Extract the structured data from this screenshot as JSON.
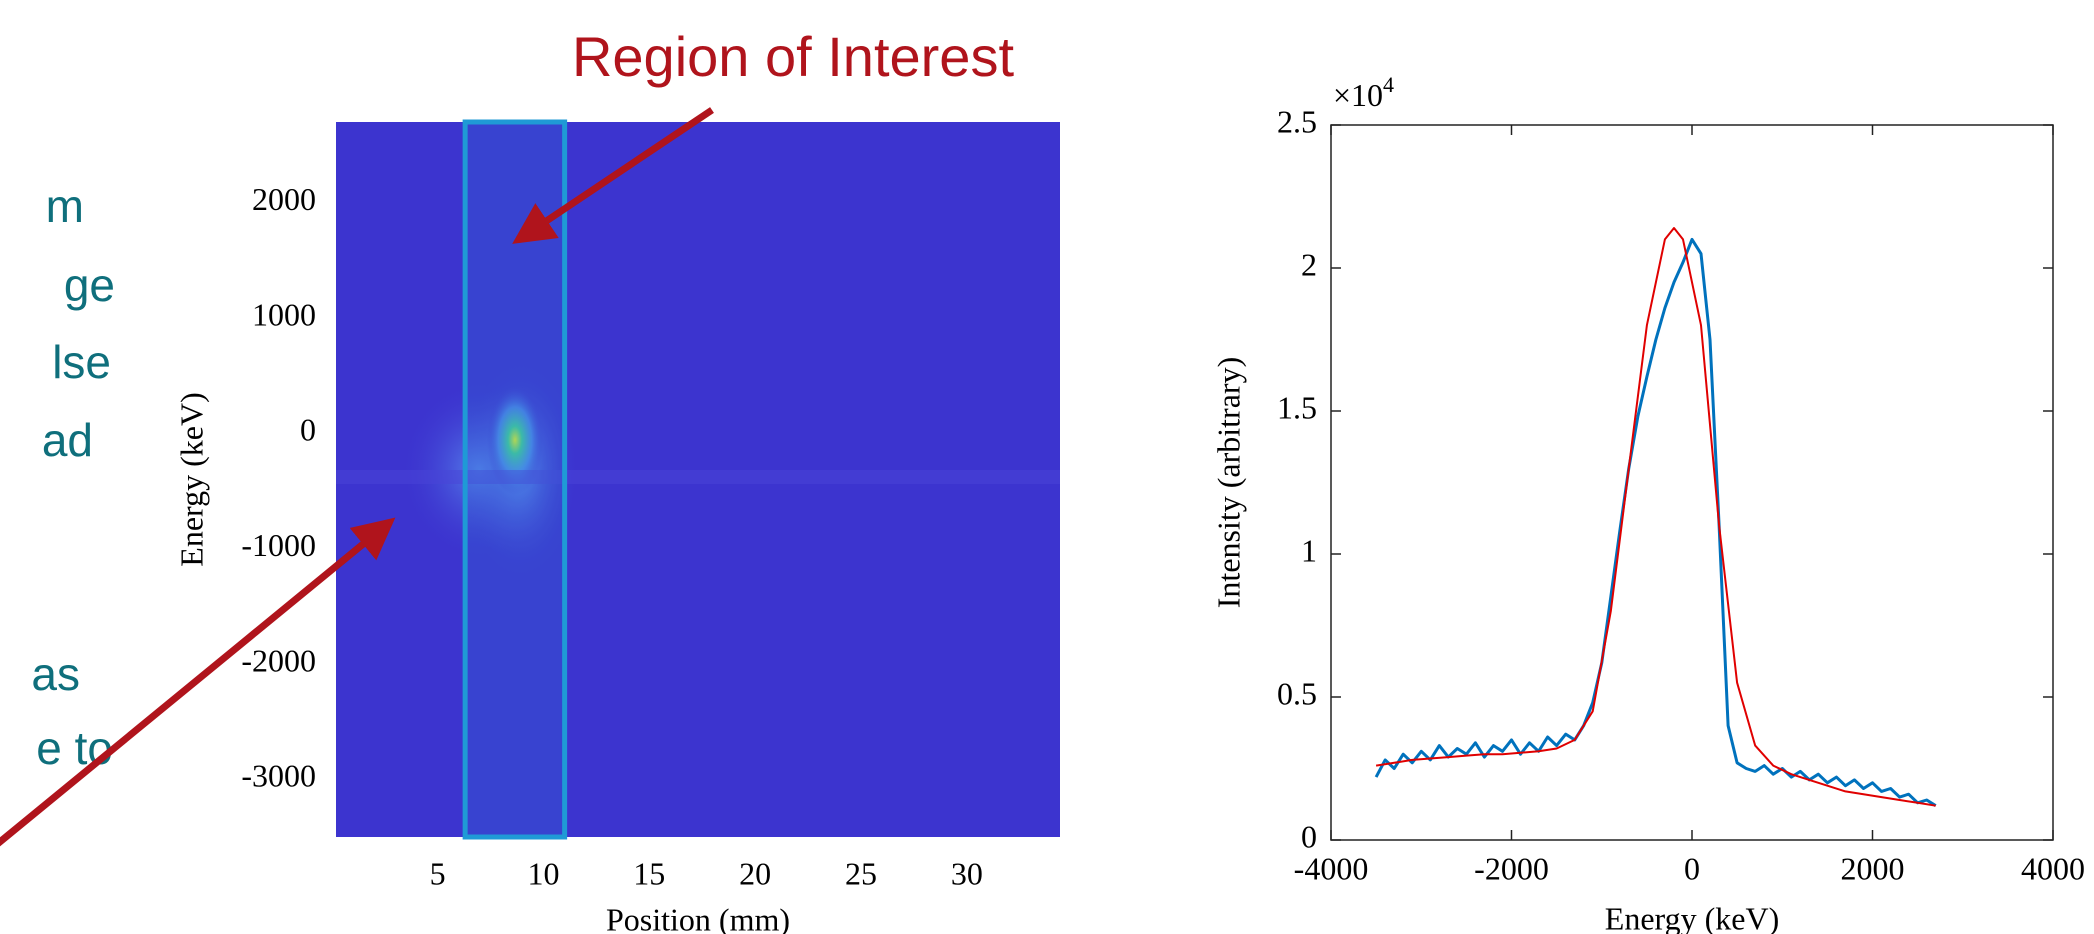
{
  "slide_text": {
    "fragments": [
      "m",
      "ge",
      "lse",
      "ad",
      "as",
      "e to"
    ]
  },
  "chart_data": [
    {
      "type": "heatmap",
      "annotation": "Region of Interest",
      "xlabel": "Position (mm)",
      "ylabel": "Energy (keV)",
      "xlim": [
        0.2,
        34.4
      ],
      "xticks": [
        5,
        10,
        15,
        20,
        25,
        30
      ],
      "ylim": [
        -3500,
        2700
      ],
      "yticks": [
        2000,
        1000,
        0,
        -1000,
        -2000,
        -3000
      ],
      "region": [
        6.3,
        11.0
      ],
      "color": "#3c34cf",
      "region_color": "#1f9ad6"
    },
    {
      "type": "line",
      "xlabel": "Energy (keV)",
      "ylabel": "Intensity  (arbitrary)",
      "multiplier": "×10",
      "multiplier_exp": "4",
      "xlim": [
        -4000,
        4000
      ],
      "xticks": [
        -4000,
        -2000,
        0,
        2000,
        4000
      ],
      "ylim": [
        0,
        2.5
      ],
      "yticks": [
        0,
        0.5,
        1,
        1.5,
        2,
        2.5
      ],
      "grid": false,
      "series": [
        {
          "color": "#0072bd",
          "x": [
            -3500,
            -3400,
            -3300,
            -3200,
            -3100,
            -3000,
            -2900,
            -2800,
            -2700,
            -2600,
            -2500,
            -2400,
            -2300,
            -2200,
            -2100,
            -2000,
            -1900,
            -1800,
            -1700,
            -1600,
            -1500,
            -1400,
            -1300,
            -1200,
            -1100,
            -1000,
            -900,
            -800,
            -700,
            -600,
            -500,
            -400,
            -300,
            -200,
            -100,
            0,
            100,
            200,
            300,
            400,
            500,
            600,
            700,
            800,
            900,
            1000,
            1100,
            1200,
            1300,
            1400,
            1500,
            1600,
            1700,
            1800,
            1900,
            2000,
            2100,
            2200,
            2300,
            2400,
            2500,
            2600,
            2700
          ],
          "values": [
            0.22,
            0.28,
            0.25,
            0.3,
            0.27,
            0.31,
            0.28,
            0.33,
            0.29,
            0.32,
            0.3,
            0.34,
            0.29,
            0.33,
            0.31,
            0.35,
            0.3,
            0.34,
            0.31,
            0.36,
            0.33,
            0.37,
            0.35,
            0.4,
            0.48,
            0.62,
            0.85,
            1.08,
            1.3,
            1.48,
            1.62,
            1.75,
            1.86,
            1.95,
            2.02,
            2.1,
            2.05,
            1.75,
            1.1,
            0.4,
            0.27,
            0.25,
            0.24,
            0.26,
            0.23,
            0.25,
            0.22,
            0.24,
            0.21,
            0.23,
            0.2,
            0.22,
            0.19,
            0.21,
            0.18,
            0.2,
            0.17,
            0.18,
            0.15,
            0.16,
            0.13,
            0.14,
            0.12
          ]
        },
        {
          "color": "#e00000",
          "x": [
            -3500,
            -3300,
            -3100,
            -2900,
            -2700,
            -2500,
            -2300,
            -2100,
            -1900,
            -1700,
            -1500,
            -1300,
            -1100,
            -900,
            -700,
            -500,
            -300,
            -200,
            -100,
            100,
            300,
            500,
            700,
            900,
            1100,
            1300,
            1500,
            1700,
            1900,
            2100,
            2300,
            2500,
            2700
          ],
          "values": [
            0.26,
            0.27,
            0.28,
            0.285,
            0.29,
            0.295,
            0.3,
            0.3,
            0.305,
            0.31,
            0.32,
            0.35,
            0.45,
            0.8,
            1.3,
            1.8,
            2.1,
            2.14,
            2.1,
            1.8,
            1.1,
            0.55,
            0.33,
            0.26,
            0.23,
            0.21,
            0.19,
            0.17,
            0.16,
            0.15,
            0.14,
            0.13,
            0.12
          ]
        }
      ]
    }
  ]
}
